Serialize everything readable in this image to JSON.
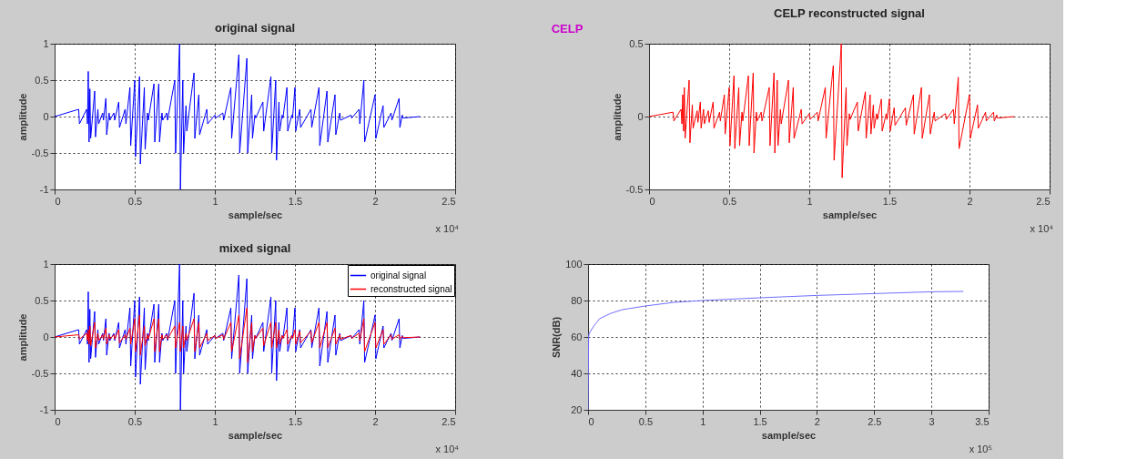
{
  "chart_data": [
    {
      "type": "line",
      "title": "original signal",
      "xlabel": "sample/sec",
      "ylabel": "amplitude",
      "xlim": [
        0,
        2.5
      ],
      "ylim": [
        -1,
        1
      ],
      "xticks": [
        0,
        0.5,
        1,
        1.5,
        2,
        2.5
      ],
      "yticks": [
        -1,
        -0.5,
        0,
        0.5,
        1
      ],
      "grid": true,
      "annotations": [
        "x 10⁴"
      ],
      "series": [
        {
          "color": "#0000ff",
          "x": [
            0,
            0.15,
            0.155,
            0.2,
            0.205,
            0.21,
            0.215,
            0.22,
            0.225,
            0.25,
            0.255,
            0.27,
            0.275,
            0.3,
            0.305,
            0.32,
            0.325,
            0.34,
            0.345,
            0.37,
            0.375,
            0.4,
            0.405,
            0.44,
            0.445,
            0.47,
            0.475,
            0.5,
            0.505,
            0.53,
            0.535,
            0.56,
            0.565,
            0.58,
            0.585,
            0.62,
            0.625,
            0.65,
            0.655,
            0.67,
            0.675,
            0.7,
            0.705,
            0.75,
            0.755,
            0.78,
            0.785,
            0.8,
            0.805,
            0.82,
            0.825,
            0.87,
            0.875,
            0.9,
            0.905,
            0.95,
            0.955,
            1.0,
            1.005,
            1.05,
            1.055,
            1.1,
            1.105,
            1.15,
            1.155,
            1.2,
            1.205,
            1.23,
            1.235,
            1.25,
            1.255,
            1.3,
            1.305,
            1.35,
            1.355,
            1.38,
            1.385,
            1.4,
            1.405,
            1.42,
            1.425,
            1.45,
            1.455,
            1.48,
            1.485,
            1.5,
            1.505,
            1.53,
            1.535,
            1.6,
            1.605,
            1.65,
            1.655,
            1.7,
            1.705,
            1.75,
            1.755,
            1.78,
            1.785,
            1.85,
            1.855,
            1.9,
            1.905,
            1.93,
            1.935,
            2.0,
            2.005,
            2.05,
            2.055,
            2.1,
            2.105,
            2.15,
            2.155,
            2.17,
            2.175,
            2.28
          ],
          "values": [
            0,
            0.1,
            -0.1,
            0.1,
            -0.1,
            0.62,
            -0.35,
            0.38,
            -0.3,
            0.35,
            -0.28,
            0.1,
            -0.1,
            0.05,
            -0.05,
            0.25,
            -0.25,
            0.05,
            -0.05,
            0.05,
            -0.05,
            0.2,
            -0.15,
            0.1,
            -0.1,
            0.4,
            -0.4,
            0.5,
            -0.55,
            0.55,
            -0.65,
            0.4,
            -0.45,
            0.05,
            -0.05,
            0.45,
            -0.35,
            0.45,
            -0.35,
            0.05,
            -0.05,
            0.05,
            -0.05,
            0.5,
            -0.5,
            1.0,
            -1.0,
            0.5,
            -0.5,
            0.15,
            -0.2,
            0.6,
            -0.3,
            0.3,
            -0.25,
            0.1,
            -0.1,
            0.02,
            -0.02,
            0.05,
            -0.05,
            0.4,
            -0.3,
            0.85,
            -0.5,
            0.8,
            -0.5,
            0.3,
            -0.3,
            0.02,
            -0.02,
            0.2,
            -0.2,
            0.55,
            -0.5,
            0.5,
            -0.6,
            0.2,
            -0.2,
            0.02,
            -0.02,
            0.4,
            -0.2,
            0.02,
            -0.02,
            0.4,
            -0.2,
            0.1,
            -0.15,
            0.1,
            -0.15,
            0.4,
            -0.4,
            0.35,
            -0.35,
            0.3,
            -0.25,
            0.05,
            -0.05,
            0.02,
            -0.02,
            0.1,
            -0.1,
            0.5,
            -0.35,
            0.3,
            -0.3,
            0.15,
            -0.15,
            0.05,
            -0.05,
            0.25,
            -0.15,
            0.02,
            -0.02,
            0
          ]
        }
      ]
    },
    {
      "type": "line",
      "title": "CELP reconstructed signal",
      "xlabel": "sample/sec",
      "ylabel": "amplitude",
      "xlim": [
        0,
        2.5
      ],
      "ylim": [
        -0.5,
        0.5
      ],
      "xticks": [
        0,
        0.5,
        1,
        1.5,
        2,
        2.5
      ],
      "yticks": [
        -0.5,
        0,
        0.5
      ],
      "grid": true,
      "annotations": [
        "CELP",
        "x 10⁴"
      ],
      "series": [
        {
          "color": "#ff0000",
          "x": [
            0,
            0.15,
            0.155,
            0.2,
            0.205,
            0.21,
            0.215,
            0.22,
            0.225,
            0.25,
            0.255,
            0.27,
            0.275,
            0.3,
            0.305,
            0.32,
            0.325,
            0.34,
            0.345,
            0.37,
            0.375,
            0.4,
            0.405,
            0.44,
            0.445,
            0.47,
            0.475,
            0.5,
            0.505,
            0.53,
            0.535,
            0.56,
            0.565,
            0.58,
            0.585,
            0.62,
            0.625,
            0.65,
            0.655,
            0.67,
            0.675,
            0.7,
            0.705,
            0.75,
            0.755,
            0.78,
            0.785,
            0.8,
            0.805,
            0.82,
            0.825,
            0.87,
            0.875,
            0.9,
            0.905,
            0.95,
            0.955,
            1.0,
            1.005,
            1.05,
            1.055,
            1.1,
            1.105,
            1.15,
            1.155,
            1.2,
            1.205,
            1.23,
            1.235,
            1.25,
            1.255,
            1.3,
            1.305,
            1.35,
            1.355,
            1.38,
            1.385,
            1.4,
            1.405,
            1.42,
            1.425,
            1.45,
            1.455,
            1.48,
            1.485,
            1.5,
            1.505,
            1.53,
            1.535,
            1.6,
            1.605,
            1.65,
            1.655,
            1.7,
            1.705,
            1.75,
            1.755,
            1.78,
            1.785,
            1.85,
            1.855,
            1.9,
            1.905,
            1.93,
            1.935,
            2.0,
            2.005,
            2.05,
            2.055,
            2.1,
            2.105,
            2.15,
            2.155,
            2.17,
            2.175,
            2.28
          ],
          "values": [
            0,
            0.03,
            -0.03,
            0.05,
            -0.05,
            0.15,
            -0.1,
            0.2,
            -0.15,
            0.25,
            -0.18,
            0.08,
            -0.08,
            0.04,
            -0.04,
            0.1,
            -0.08,
            0.05,
            -0.05,
            0.04,
            -0.04,
            0.1,
            -0.08,
            0.03,
            -0.03,
            0.15,
            -0.12,
            0.2,
            -0.2,
            0.28,
            -0.22,
            0.2,
            -0.2,
            0.03,
            -0.03,
            0.28,
            -0.2,
            0.3,
            -0.25,
            0.03,
            -0.03,
            0.03,
            -0.03,
            0.2,
            -0.2,
            0.3,
            -0.25,
            0.25,
            -0.2,
            0.05,
            -0.05,
            0.25,
            -0.18,
            0.2,
            -0.15,
            0.05,
            -0.05,
            0.02,
            -0.02,
            0.03,
            -0.03,
            0.2,
            -0.15,
            0.35,
            -0.3,
            0.5,
            -0.42,
            0.2,
            -0.2,
            0.02,
            -0.02,
            0.1,
            -0.1,
            0.17,
            -0.15,
            0.15,
            -0.12,
            0.08,
            -0.08,
            0.02,
            -0.02,
            0.12,
            -0.1,
            0.02,
            -0.02,
            0.12,
            -0.1,
            0.06,
            -0.06,
            0.06,
            -0.06,
            0.15,
            -0.12,
            0.2,
            -0.15,
            0.15,
            -0.12,
            0.03,
            -0.03,
            0.02,
            -0.02,
            0.05,
            -0.05,
            0.27,
            -0.22,
            0.15,
            -0.15,
            0.08,
            -0.08,
            0.03,
            -0.03,
            0.03,
            -0.03,
            0.01,
            -0.01,
            0
          ]
        }
      ]
    },
    {
      "type": "line",
      "title": "mixed signal",
      "xlabel": "sample/sec",
      "ylabel": "amplitude",
      "xlim": [
        0,
        2.5
      ],
      "ylim": [
        -1,
        1
      ],
      "xticks": [
        0,
        0.5,
        1,
        1.5,
        2,
        2.5
      ],
      "yticks": [
        -1,
        -0.5,
        0,
        0.5,
        1
      ],
      "grid": true,
      "legend": "top right",
      "annotations": [
        "x 10⁴"
      ],
      "series": [
        {
          "name": "original signal",
          "color": "#0000ff",
          "x": [
            0,
            0.15,
            0.155,
            0.2,
            0.205,
            0.21,
            0.215,
            0.22,
            0.225,
            0.25,
            0.255,
            0.27,
            0.275,
            0.3,
            0.305,
            0.32,
            0.325,
            0.34,
            0.345,
            0.37,
            0.375,
            0.4,
            0.405,
            0.44,
            0.445,
            0.47,
            0.475,
            0.5,
            0.505,
            0.53,
            0.535,
            0.56,
            0.565,
            0.58,
            0.585,
            0.62,
            0.625,
            0.65,
            0.655,
            0.67,
            0.675,
            0.7,
            0.705,
            0.75,
            0.755,
            0.78,
            0.785,
            0.8,
            0.805,
            0.82,
            0.825,
            0.87,
            0.875,
            0.9,
            0.905,
            0.95,
            0.955,
            1.0,
            1.005,
            1.05,
            1.055,
            1.1,
            1.105,
            1.15,
            1.155,
            1.2,
            1.205,
            1.23,
            1.235,
            1.25,
            1.255,
            1.3,
            1.305,
            1.35,
            1.355,
            1.38,
            1.385,
            1.4,
            1.405,
            1.42,
            1.425,
            1.45,
            1.455,
            1.48,
            1.485,
            1.5,
            1.505,
            1.53,
            1.535,
            1.6,
            1.605,
            1.65,
            1.655,
            1.7,
            1.705,
            1.75,
            1.755,
            1.78,
            1.785,
            1.85,
            1.855,
            1.9,
            1.905,
            1.93,
            1.935,
            2.0,
            2.005,
            2.05,
            2.055,
            2.1,
            2.105,
            2.15,
            2.155,
            2.17,
            2.175,
            2.28
          ],
          "values": [
            0,
            0.1,
            -0.1,
            0.1,
            -0.1,
            0.62,
            -0.35,
            0.38,
            -0.3,
            0.35,
            -0.28,
            0.1,
            -0.1,
            0.05,
            -0.05,
            0.25,
            -0.25,
            0.05,
            -0.05,
            0.05,
            -0.05,
            0.2,
            -0.15,
            0.1,
            -0.1,
            0.4,
            -0.4,
            0.5,
            -0.55,
            0.55,
            -0.65,
            0.4,
            -0.45,
            0.05,
            -0.05,
            0.45,
            -0.35,
            0.45,
            -0.35,
            0.05,
            -0.05,
            0.05,
            -0.05,
            0.5,
            -0.5,
            1.0,
            -1.0,
            0.5,
            -0.5,
            0.15,
            -0.2,
            0.6,
            -0.3,
            0.3,
            -0.25,
            0.1,
            -0.1,
            0.02,
            -0.02,
            0.05,
            -0.05,
            0.4,
            -0.3,
            0.85,
            -0.5,
            0.8,
            -0.5,
            0.3,
            -0.3,
            0.02,
            -0.02,
            0.2,
            -0.2,
            0.55,
            -0.5,
            0.5,
            -0.6,
            0.2,
            -0.2,
            0.02,
            -0.02,
            0.4,
            -0.2,
            0.02,
            -0.02,
            0.4,
            -0.2,
            0.1,
            -0.15,
            0.1,
            -0.15,
            0.4,
            -0.4,
            0.35,
            -0.35,
            0.3,
            -0.25,
            0.05,
            -0.05,
            0.02,
            -0.02,
            0.1,
            -0.1,
            0.5,
            -0.35,
            0.3,
            -0.3,
            0.15,
            -0.15,
            0.05,
            -0.05,
            0.25,
            -0.15,
            0.02,
            -0.02,
            0
          ]
        },
        {
          "name": "reconstructed signal",
          "color": "#ff0000",
          "x": [
            0,
            0.15,
            0.155,
            0.2,
            0.205,
            0.21,
            0.215,
            0.22,
            0.225,
            0.25,
            0.255,
            0.27,
            0.275,
            0.3,
            0.305,
            0.32,
            0.325,
            0.34,
            0.345,
            0.37,
            0.375,
            0.4,
            0.405,
            0.44,
            0.445,
            0.47,
            0.475,
            0.5,
            0.505,
            0.53,
            0.535,
            0.56,
            0.565,
            0.58,
            0.585,
            0.62,
            0.625,
            0.65,
            0.655,
            0.67,
            0.675,
            0.7,
            0.705,
            0.75,
            0.755,
            0.78,
            0.785,
            0.8,
            0.805,
            0.82,
            0.825,
            0.87,
            0.875,
            0.9,
            0.905,
            0.95,
            0.955,
            1.0,
            1.005,
            1.05,
            1.055,
            1.1,
            1.105,
            1.15,
            1.155,
            1.2,
            1.205,
            1.23,
            1.235,
            1.25,
            1.255,
            1.3,
            1.305,
            1.35,
            1.355,
            1.38,
            1.385,
            1.4,
            1.405,
            1.42,
            1.425,
            1.45,
            1.455,
            1.48,
            1.485,
            1.5,
            1.505,
            1.53,
            1.535,
            1.6,
            1.605,
            1.65,
            1.655,
            1.7,
            1.705,
            1.75,
            1.755,
            1.78,
            1.785,
            1.85,
            1.855,
            1.9,
            1.905,
            1.93,
            1.935,
            2.0,
            2.005,
            2.05,
            2.055,
            2.1,
            2.105,
            2.15,
            2.155,
            2.17,
            2.175,
            2.28
          ],
          "values": [
            0,
            0.03,
            -0.03,
            0.05,
            -0.05,
            0.1,
            -0.1,
            0.15,
            -0.12,
            0.2,
            -0.15,
            0.05,
            -0.05,
            0.03,
            -0.03,
            0.12,
            -0.1,
            0.03,
            -0.03,
            0.03,
            -0.03,
            0.1,
            -0.08,
            0.03,
            -0.03,
            0.12,
            -0.1,
            0.25,
            -0.2,
            0.3,
            -0.25,
            0.15,
            -0.12,
            0.03,
            -0.03,
            0.25,
            -0.2,
            0.25,
            -0.2,
            0.03,
            -0.03,
            0.03,
            -0.03,
            0.15,
            -0.15,
            0.2,
            -0.2,
            0.15,
            -0.15,
            0.05,
            -0.05,
            0.25,
            -0.2,
            0.2,
            -0.15,
            0.05,
            -0.05,
            0.02,
            -0.02,
            0.03,
            -0.03,
            0.2,
            -0.2,
            0.3,
            -0.3,
            0.4,
            -0.35,
            0.2,
            -0.2,
            0.02,
            -0.02,
            0.12,
            -0.12,
            0.2,
            -0.15,
            0.2,
            -0.15,
            0.1,
            -0.1,
            0.02,
            -0.02,
            0.1,
            -0.1,
            0.02,
            -0.02,
            0.1,
            -0.1,
            0.08,
            -0.08,
            0.08,
            -0.08,
            0.2,
            -0.15,
            0.2,
            -0.15,
            0.12,
            -0.1,
            0.03,
            -0.03,
            0.02,
            -0.02,
            0.05,
            -0.05,
            0.25,
            -0.2,
            0.2,
            -0.15,
            0.1,
            -0.1,
            0.03,
            -0.03,
            0.03,
            -0.03,
            0.01,
            -0.01,
            0
          ]
        }
      ]
    },
    {
      "type": "line",
      "xlabel": "sample/sec",
      "ylabel": "SNR(dB)",
      "xlim": [
        0,
        3.5
      ],
      "ylim": [
        20,
        100
      ],
      "xticks": [
        0,
        0.5,
        1,
        1.5,
        2,
        2.5,
        3,
        3.5
      ],
      "yticks": [
        20,
        40,
        60,
        80,
        100
      ],
      "grid": true,
      "annotations": [
        "x 10⁵"
      ],
      "series": [
        {
          "color": "#6f6fff",
          "x": [
            0,
            0.005,
            0.01,
            0.03,
            0.05,
            0.1,
            0.2,
            0.3,
            0.5,
            0.75,
            1.0,
            1.5,
            2.0,
            2.5,
            3.0,
            3.28
          ],
          "values": [
            20,
            60,
            62,
            64,
            66,
            70,
            73,
            75,
            77,
            79,
            80,
            81.5,
            82.8,
            83.8,
            84.8,
            85
          ]
        }
      ]
    }
  ]
}
